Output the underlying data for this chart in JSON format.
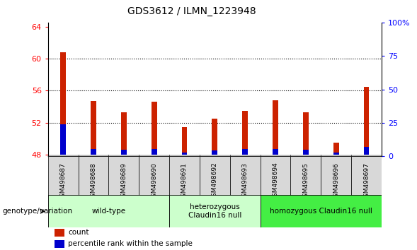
{
  "title": "GDS3612 / ILMN_1223948",
  "samples": [
    "GSM498687",
    "GSM498688",
    "GSM498689",
    "GSM498690",
    "GSM498691",
    "GSM498692",
    "GSM498693",
    "GSM498694",
    "GSM498695",
    "GSM498696",
    "GSM498697"
  ],
  "red_values": [
    60.8,
    54.7,
    53.3,
    54.6,
    51.4,
    52.5,
    53.5,
    54.8,
    53.3,
    49.5,
    56.5
  ],
  "blue_values": [
    51.8,
    48.7,
    48.6,
    48.7,
    48.3,
    48.5,
    48.7,
    48.7,
    48.6,
    48.3,
    49.0
  ],
  "baseline": 48,
  "ylim_left": [
    47.8,
    64.5
  ],
  "ylim_right": [
    0,
    100
  ],
  "yticks_left": [
    48,
    52,
    56,
    60,
    64
  ],
  "yticks_right": [
    0,
    25,
    50,
    75,
    100
  ],
  "groups": [
    {
      "label": "wild-type",
      "start": 0,
      "end": 3,
      "color": "#ccffcc"
    },
    {
      "label": "heterozygous\nClaudin16 null",
      "start": 4,
      "end": 6,
      "color": "#ccffcc"
    },
    {
      "label": "homozygous Claudin16 null",
      "start": 7,
      "end": 10,
      "color": "#44ee44"
    }
  ],
  "bar_color": "#cc2200",
  "blue_color": "#0000cc",
  "red_bar_width": 0.18,
  "blue_bar_width": 0.18,
  "grid_color": "black",
  "xtick_bg_color": "#d8d8d8",
  "label_count": "count",
  "label_percentile": "percentile rank within the sample",
  "genotype_label": "genotype/variation"
}
